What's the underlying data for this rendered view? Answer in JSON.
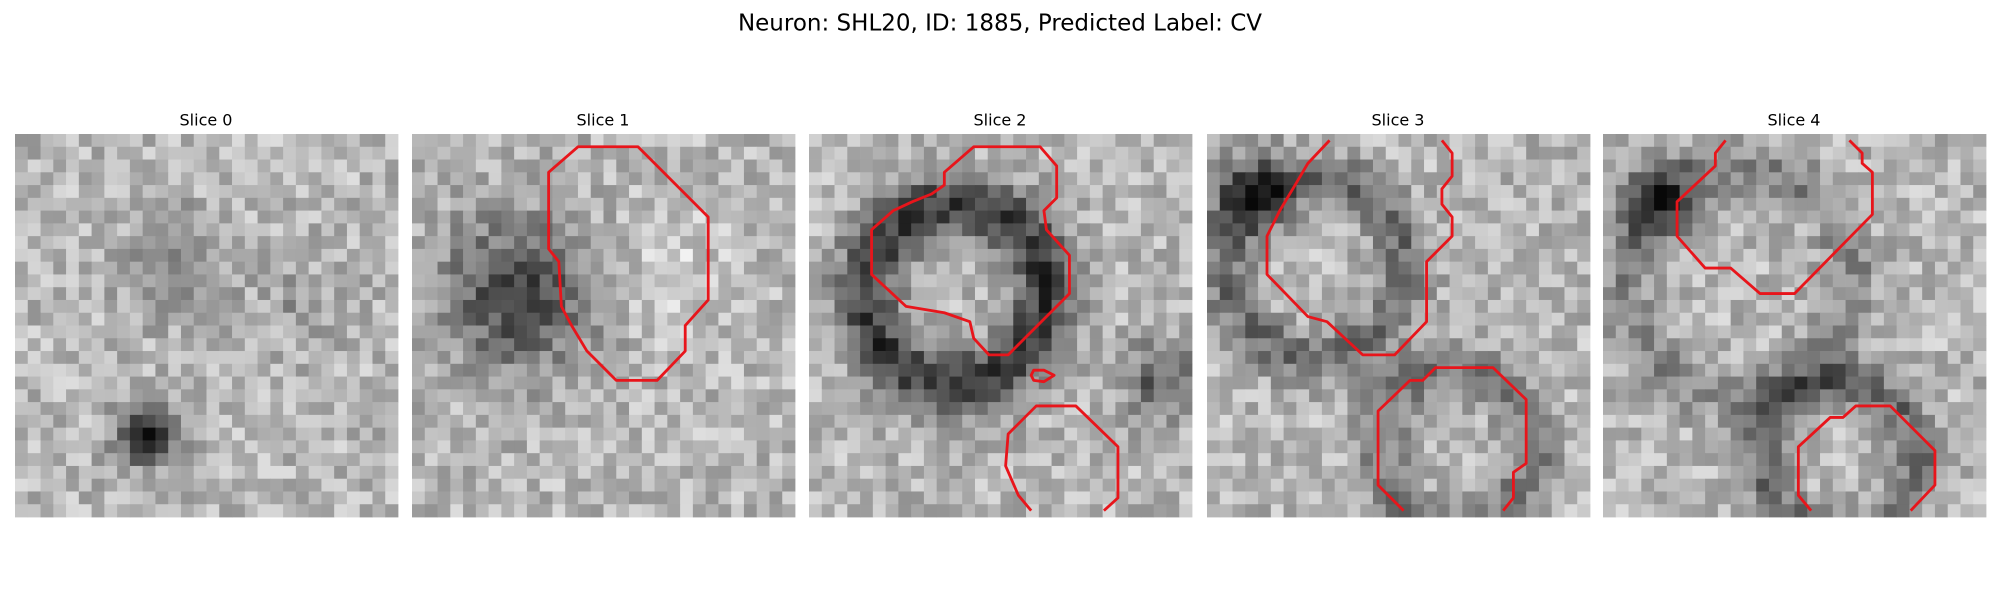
{
  "header": {
    "title": "Neuron: SHL20, ID: 1885, Predicted Label: CV"
  },
  "panels": [
    {
      "title": "Slice 0"
    },
    {
      "title": "Slice 1"
    },
    {
      "title": "Slice 2"
    },
    {
      "title": "Slice 3"
    },
    {
      "title": "Slice 4"
    }
  ]
}
